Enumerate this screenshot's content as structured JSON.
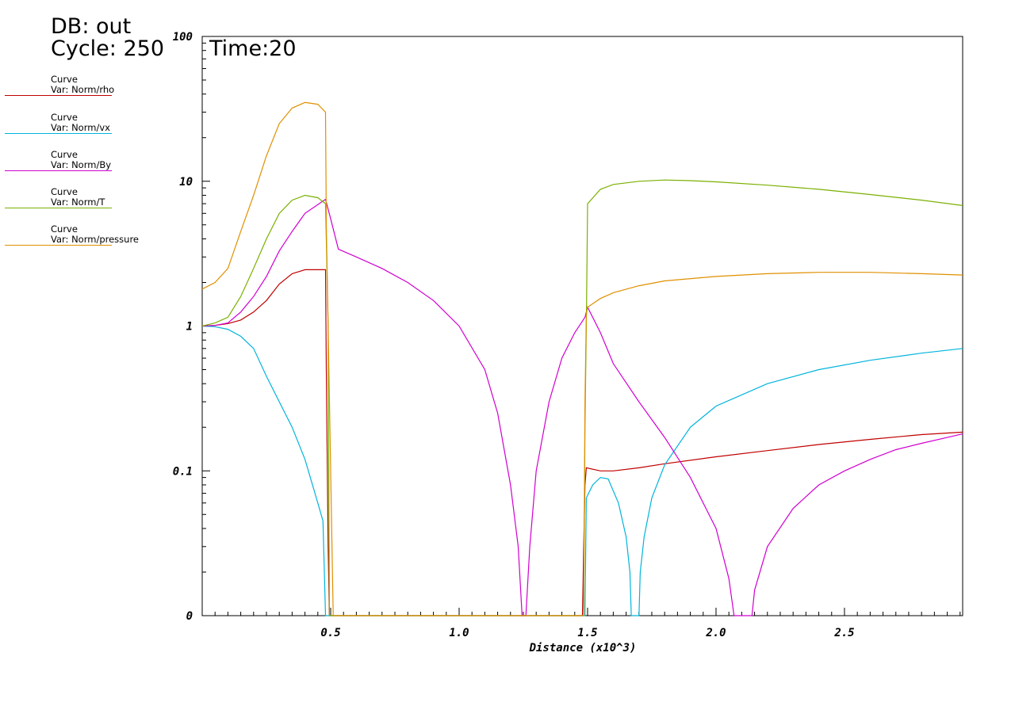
{
  "header": {
    "db_label": "DB: out",
    "cycle_label": "Cycle: 250",
    "time_label": "Time:20"
  },
  "legend": [
    {
      "title": "Curve",
      "var": "Var: Norm/rho",
      "color": "#c00000"
    },
    {
      "title": "Curve",
      "var": "Var: Norm/vx",
      "color": "#00b4dc"
    },
    {
      "title": "Curve",
      "var": "Var: Norm/By",
      "color": "#d000d0"
    },
    {
      "title": "Curve",
      "var": "Var: Norm/T",
      "color": "#7ab000"
    },
    {
      "title": "Curve",
      "var": "Var: Norm/pressure",
      "color": "#e09000"
    }
  ],
  "chart_data": {
    "type": "line",
    "title": "",
    "xlabel": "Distance (x10^3)",
    "ylabel": "",
    "xlim": [
      0,
      2.96
    ],
    "ylim_labels": [
      "0",
      "0.1",
      "1",
      "10",
      "100"
    ],
    "y_scale": "log (bottom label 0 = 0.01)",
    "x_ticks": [
      "0.5",
      "1.0",
      "1.5",
      "2.0",
      "2.5"
    ],
    "y_ticks": [
      "0",
      "0.1",
      "1",
      "10",
      "100"
    ],
    "series": [
      {
        "name": "Var: Norm/rho",
        "color": "#c00000",
        "points": [
          [
            0,
            1.0
          ],
          [
            0.05,
            1.01
          ],
          [
            0.1,
            1.04
          ],
          [
            0.15,
            1.1
          ],
          [
            0.2,
            1.25
          ],
          [
            0.25,
            1.5
          ],
          [
            0.3,
            1.95
          ],
          [
            0.35,
            2.3
          ],
          [
            0.4,
            2.45
          ],
          [
            0.48,
            2.45
          ],
          [
            0.483,
            0.5
          ],
          [
            0.49,
            0.03
          ],
          [
            0.495,
            0.01
          ],
          [
            1.48,
            0.01
          ],
          [
            1.485,
            0.03
          ],
          [
            1.49,
            0.08
          ],
          [
            1.495,
            0.105
          ],
          [
            1.55,
            0.1
          ],
          [
            1.6,
            0.1
          ],
          [
            1.7,
            0.105
          ],
          [
            1.8,
            0.112
          ],
          [
            2.0,
            0.125
          ],
          [
            2.2,
            0.138
          ],
          [
            2.4,
            0.152
          ],
          [
            2.6,
            0.165
          ],
          [
            2.8,
            0.178
          ],
          [
            2.96,
            0.185
          ]
        ]
      },
      {
        "name": "Var: Norm/vx",
        "color": "#00b4dc",
        "points": [
          [
            0,
            1.0
          ],
          [
            0.05,
            0.99
          ],
          [
            0.1,
            0.95
          ],
          [
            0.15,
            0.85
          ],
          [
            0.2,
            0.7
          ],
          [
            0.25,
            0.45
          ],
          [
            0.3,
            0.3
          ],
          [
            0.35,
            0.2
          ],
          [
            0.4,
            0.12
          ],
          [
            0.45,
            0.06
          ],
          [
            0.47,
            0.045
          ],
          [
            0.48,
            0.01
          ],
          [
            1.49,
            0.01
          ],
          [
            1.495,
            0.065
          ],
          [
            1.52,
            0.08
          ],
          [
            1.55,
            0.09
          ],
          [
            1.58,
            0.088
          ],
          [
            1.62,
            0.06
          ],
          [
            1.65,
            0.035
          ],
          [
            1.665,
            0.02
          ],
          [
            1.67,
            0.01
          ],
          [
            1.7,
            0.01
          ],
          [
            1.705,
            0.02
          ],
          [
            1.72,
            0.035
          ],
          [
            1.75,
            0.065
          ],
          [
            1.8,
            0.11
          ],
          [
            1.9,
            0.2
          ],
          [
            2.0,
            0.28
          ],
          [
            2.2,
            0.4
          ],
          [
            2.4,
            0.5
          ],
          [
            2.6,
            0.58
          ],
          [
            2.8,
            0.65
          ],
          [
            2.96,
            0.7
          ]
        ]
      },
      {
        "name": "Var: Norm/By",
        "color": "#d000d0",
        "points": [
          [
            0,
            1.0
          ],
          [
            0.05,
            1.01
          ],
          [
            0.1,
            1.05
          ],
          [
            0.15,
            1.25
          ],
          [
            0.2,
            1.6
          ],
          [
            0.25,
            2.2
          ],
          [
            0.3,
            3.3
          ],
          [
            0.35,
            4.5
          ],
          [
            0.4,
            6.0
          ],
          [
            0.48,
            7.5
          ],
          [
            0.5,
            5.5
          ],
          [
            0.53,
            3.4
          ],
          [
            0.6,
            3.0
          ],
          [
            0.7,
            2.5
          ],
          [
            0.8,
            2.0
          ],
          [
            0.9,
            1.5
          ],
          [
            1.0,
            1.0
          ],
          [
            1.1,
            0.5
          ],
          [
            1.15,
            0.25
          ],
          [
            1.2,
            0.08
          ],
          [
            1.23,
            0.03
          ],
          [
            1.245,
            0.01
          ],
          [
            1.26,
            0.01
          ],
          [
            1.275,
            0.03
          ],
          [
            1.3,
            0.1
          ],
          [
            1.35,
            0.3
          ],
          [
            1.4,
            0.6
          ],
          [
            1.45,
            0.9
          ],
          [
            1.49,
            1.15
          ],
          [
            1.5,
            1.35
          ],
          [
            1.55,
            0.9
          ],
          [
            1.6,
            0.55
          ],
          [
            1.7,
            0.3
          ],
          [
            1.8,
            0.17
          ],
          [
            1.9,
            0.09
          ],
          [
            2.0,
            0.04
          ],
          [
            2.05,
            0.018
          ],
          [
            2.07,
            0.01
          ],
          [
            2.14,
            0.01
          ],
          [
            2.15,
            0.015
          ],
          [
            2.2,
            0.03
          ],
          [
            2.3,
            0.055
          ],
          [
            2.4,
            0.08
          ],
          [
            2.5,
            0.1
          ],
          [
            2.6,
            0.12
          ],
          [
            2.7,
            0.14
          ],
          [
            2.8,
            0.155
          ],
          [
            2.9,
            0.17
          ],
          [
            2.96,
            0.18
          ]
        ]
      },
      {
        "name": "Var: Norm/T",
        "color": "#7ab000",
        "points": [
          [
            0,
            1.0
          ],
          [
            0.05,
            1.05
          ],
          [
            0.1,
            1.15
          ],
          [
            0.15,
            1.6
          ],
          [
            0.2,
            2.5
          ],
          [
            0.25,
            4.0
          ],
          [
            0.3,
            6.0
          ],
          [
            0.35,
            7.4
          ],
          [
            0.4,
            8.0
          ],
          [
            0.45,
            7.7
          ],
          [
            0.48,
            7.0
          ],
          [
            0.483,
            4.0
          ],
          [
            0.49,
            1.0
          ],
          [
            0.495,
            0.01
          ],
          [
            1.485,
            0.01
          ],
          [
            1.49,
            0.2
          ],
          [
            1.495,
            1.0
          ],
          [
            1.5,
            7.0
          ],
          [
            1.55,
            8.8
          ],
          [
            1.6,
            9.5
          ],
          [
            1.7,
            10.0
          ],
          [
            1.8,
            10.2
          ],
          [
            1.9,
            10.1
          ],
          [
            2.0,
            9.9
          ],
          [
            2.2,
            9.4
          ],
          [
            2.4,
            8.8
          ],
          [
            2.6,
            8.1
          ],
          [
            2.8,
            7.4
          ],
          [
            2.96,
            6.8
          ]
        ]
      },
      {
        "name": "Var: Norm/pressure",
        "color": "#e09000",
        "points": [
          [
            0,
            1.8
          ],
          [
            0.05,
            2.0
          ],
          [
            0.1,
            2.5
          ],
          [
            0.15,
            4.5
          ],
          [
            0.2,
            8.0
          ],
          [
            0.25,
            15.0
          ],
          [
            0.3,
            25.0
          ],
          [
            0.35,
            32.0
          ],
          [
            0.4,
            35.0
          ],
          [
            0.45,
            34.0
          ],
          [
            0.48,
            30.0
          ],
          [
            0.483,
            5.0
          ],
          [
            0.49,
            1.0
          ],
          [
            0.5,
            0.1
          ],
          [
            0.51,
            0.01
          ],
          [
            1.485,
            0.01
          ],
          [
            1.49,
            0.3
          ],
          [
            1.495,
            1.2
          ],
          [
            1.5,
            1.35
          ],
          [
            1.55,
            1.55
          ],
          [
            1.6,
            1.7
          ],
          [
            1.7,
            1.9
          ],
          [
            1.8,
            2.05
          ],
          [
            2.0,
            2.2
          ],
          [
            2.2,
            2.3
          ],
          [
            2.4,
            2.35
          ],
          [
            2.6,
            2.35
          ],
          [
            2.8,
            2.3
          ],
          [
            2.96,
            2.25
          ]
        ]
      }
    ]
  }
}
